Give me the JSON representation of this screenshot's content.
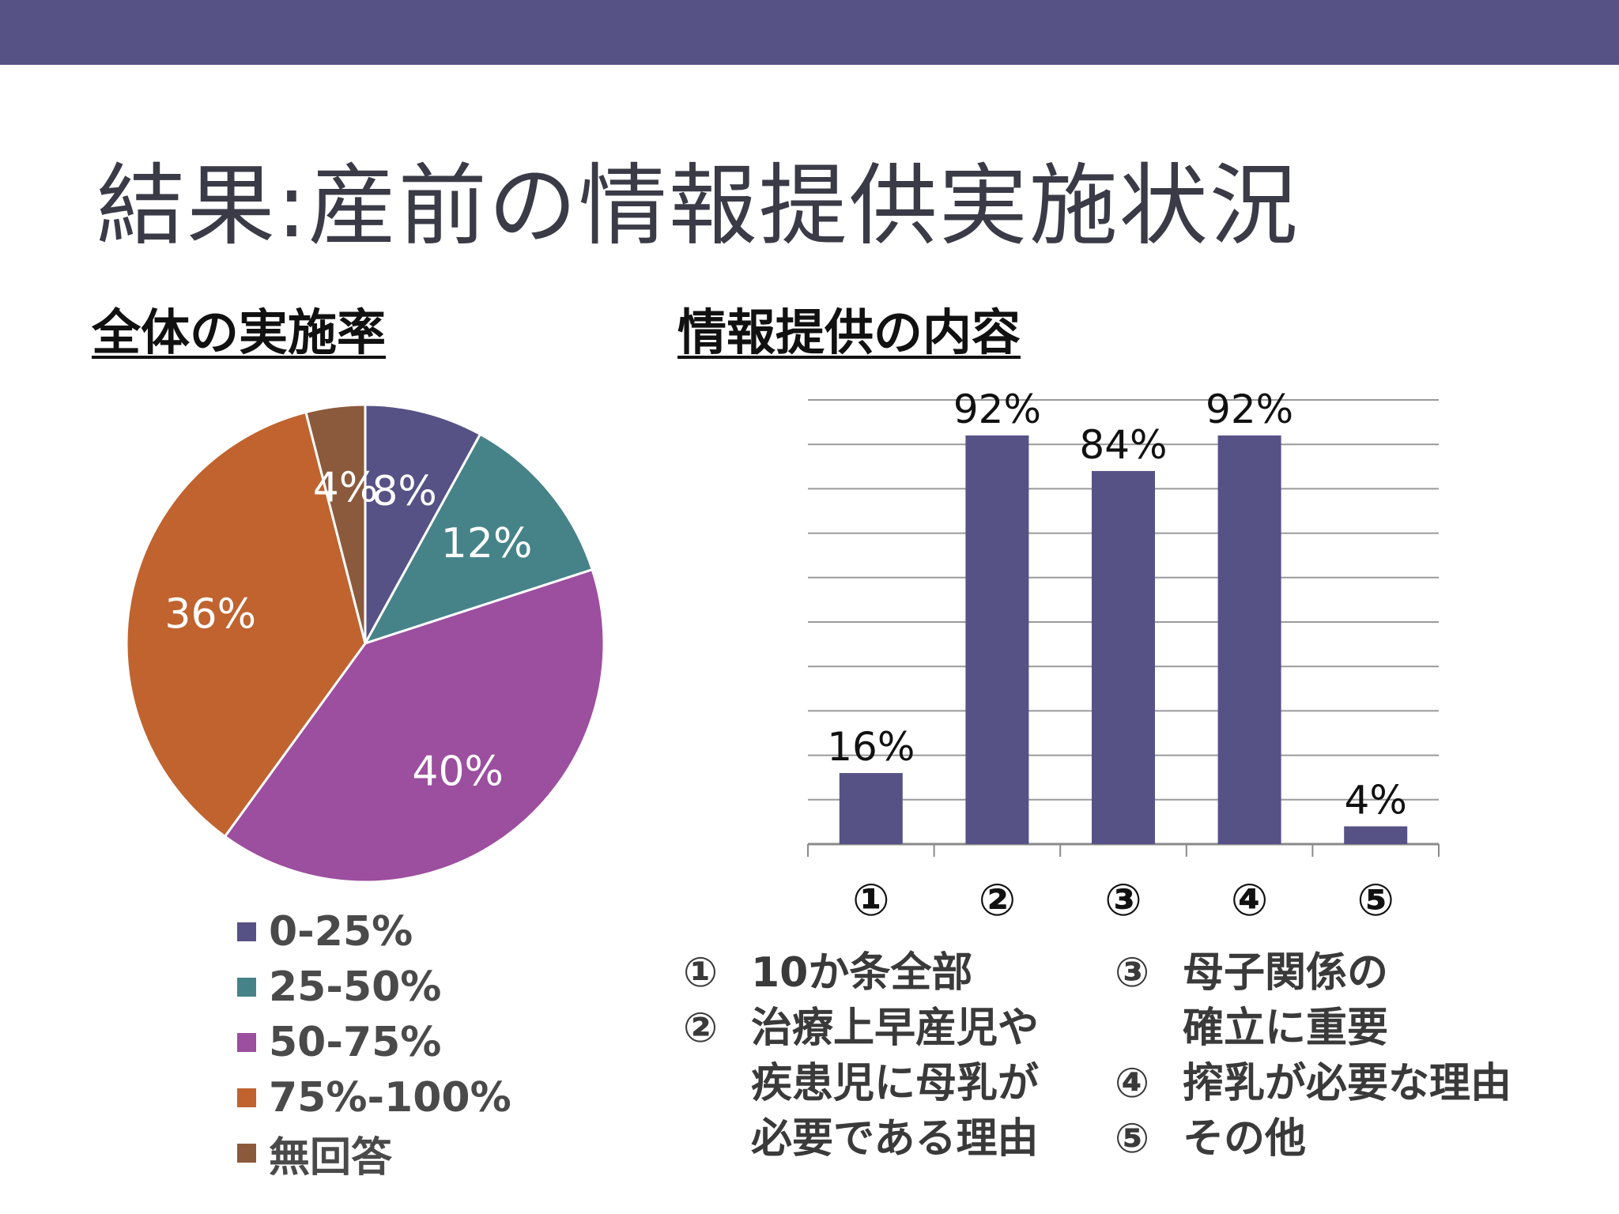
{
  "slide": {
    "title": "結果:産前の情報提供実施状況",
    "left_heading": "全体の実施率",
    "right_heading": "情報提供の内容"
  },
  "colors": {
    "header_bar": "#565286",
    "series": [
      "#565286",
      "#468389",
      "#9c4e9f",
      "#c0632f",
      "#8b5a3c"
    ],
    "bar": "#565286"
  },
  "chart_data": [
    {
      "type": "pie",
      "title": "全体の実施率",
      "slices": [
        {
          "label": "0-25%",
          "value": 8,
          "data_label": "8%",
          "color": "#565286"
        },
        {
          "label": "25-50%",
          "value": 12,
          "data_label": "12%",
          "color": "#468389"
        },
        {
          "label": "50-75%",
          "value": 40,
          "data_label": "40%",
          "color": "#9c4e9f"
        },
        {
          "label": "75%-100%",
          "value": 36,
          "data_label": "36%",
          "color": "#c0632f"
        },
        {
          "label": "無回答",
          "value": 4,
          "data_label": "4%",
          "color": "#8b5a3c"
        }
      ],
      "legend": "bottom"
    },
    {
      "type": "bar",
      "title": "情報提供の内容",
      "categories": [
        "①",
        "②",
        "③",
        "④",
        "⑤"
      ],
      "values": [
        16,
        92,
        84,
        92,
        4
      ],
      "data_labels": [
        "16%",
        "92%",
        "84%",
        "92%",
        "4%"
      ],
      "ylim": [
        0,
        100
      ],
      "grid": true
    }
  ],
  "notes": {
    "left": [
      {
        "num": "①",
        "text": "10か条全部"
      },
      {
        "num": "②",
        "text": "治療上早産児や\n疾患児に母乳が\n必要である理由"
      }
    ],
    "right": [
      {
        "num": "③",
        "text": "母子関係の\n確立に重要"
      },
      {
        "num": "④",
        "text": "搾乳が必要な理由"
      },
      {
        "num": "⑤",
        "text": "その他"
      }
    ]
  }
}
